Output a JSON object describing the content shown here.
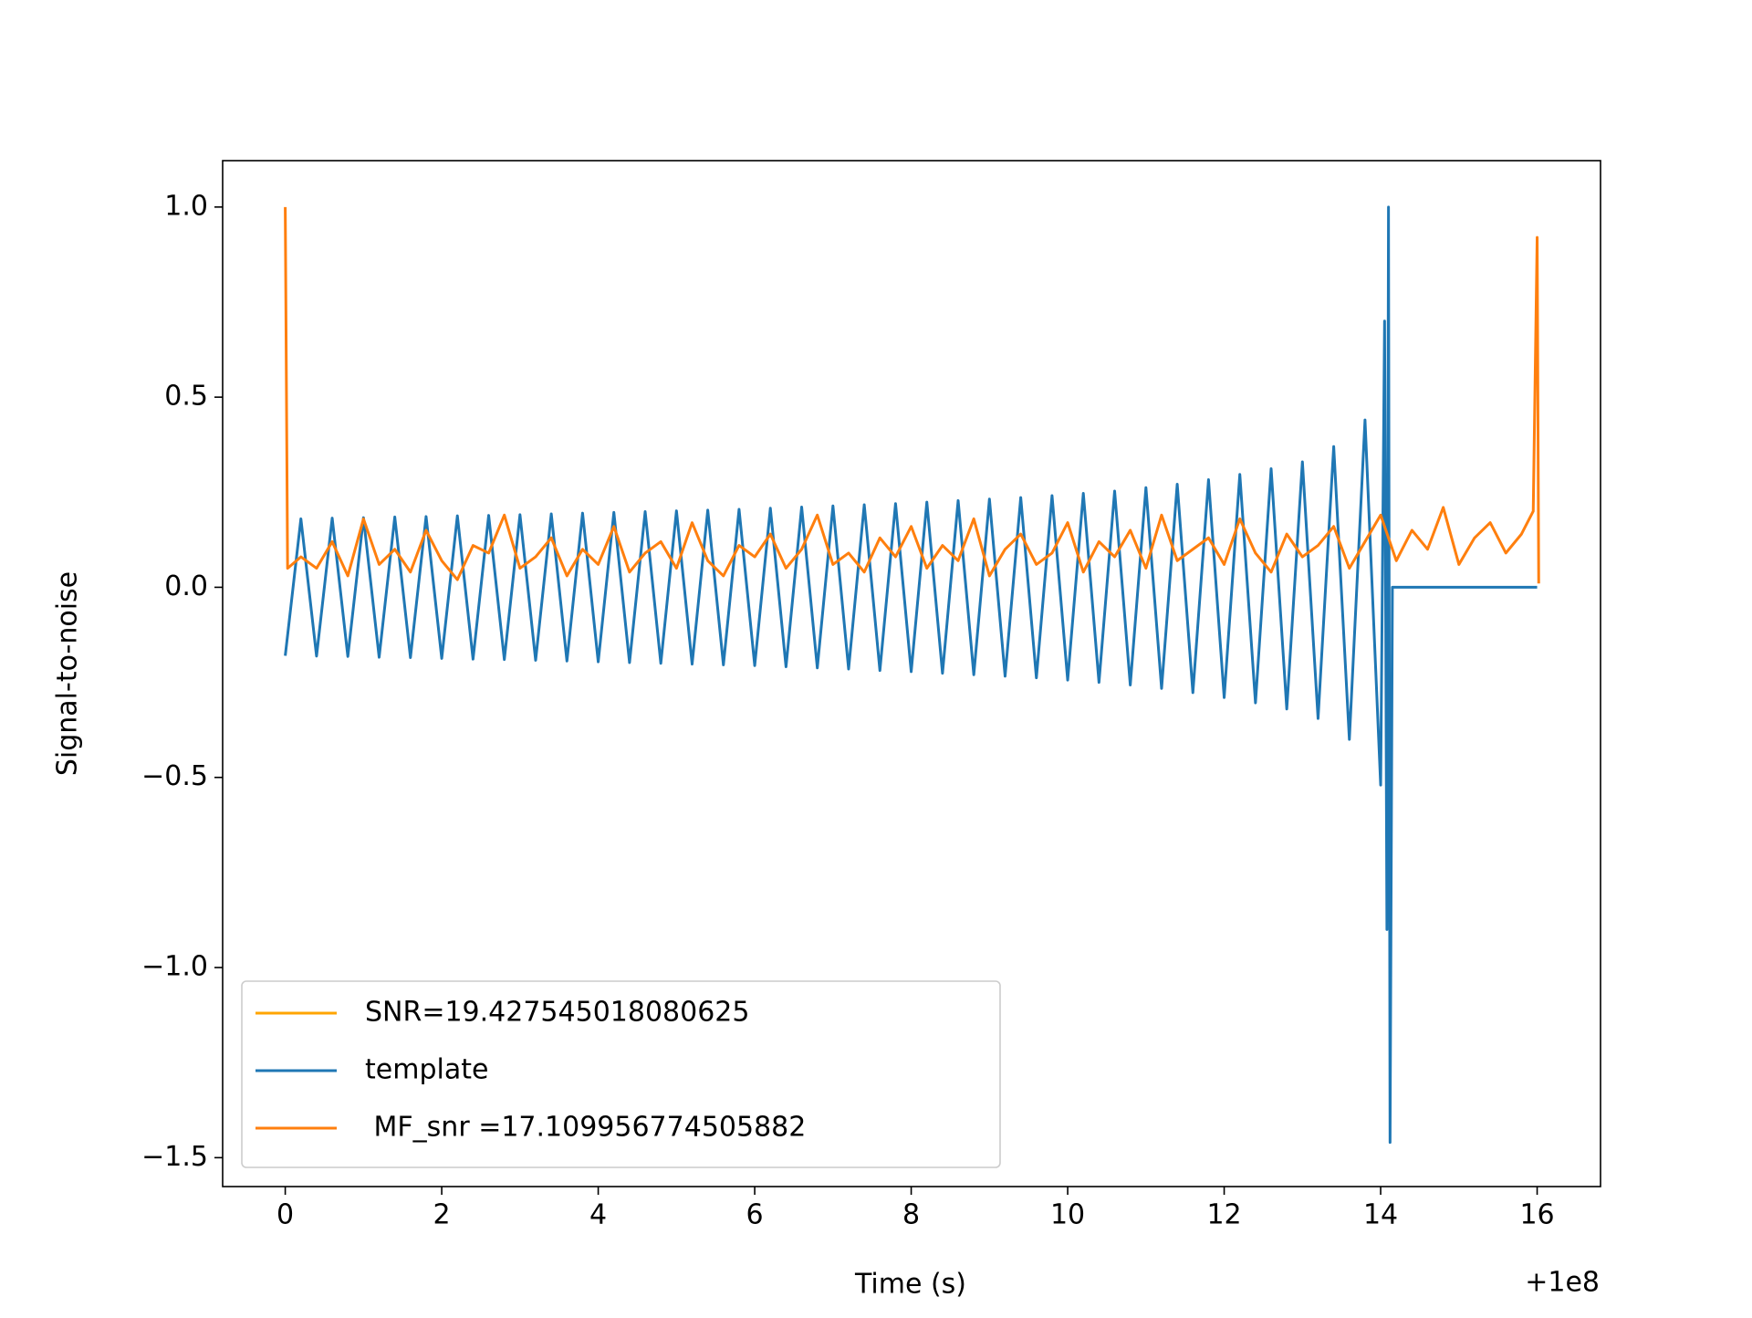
{
  "chart_data": {
    "type": "line",
    "xlabel": "Time (s)",
    "ylabel": "Signal-to-noise",
    "x_offset": "+1e8",
    "xlim": [
      -0.8,
      16.81
    ],
    "ylim": [
      -1.576,
      1.122
    ],
    "xticks": [
      0,
      2,
      4,
      6,
      8,
      10,
      12,
      14,
      16
    ],
    "yticks": [
      {
        "value": -1.5,
        "label": "−1.5"
      },
      {
        "value": -1.0,
        "label": "−1.0"
      },
      {
        "value": -0.5,
        "label": "−0.5"
      },
      {
        "value": 0.0,
        "label": "0.0"
      },
      {
        "value": 0.5,
        "label": "0.5"
      },
      {
        "value": 1.0,
        "label": "1.0"
      }
    ],
    "legend": "lower left",
    "series": [
      {
        "name": "SNR=19.427545018080625",
        "color": "#ffa500",
        "x": [],
        "values": []
      },
      {
        "name": "template",
        "color": "#1f77b4",
        "x": [
          0,
          0.2,
          0.4,
          0.6,
          0.8,
          1.0,
          1.2,
          1.4,
          1.6,
          1.8,
          2.0,
          2.2,
          2.4,
          2.6,
          2.8,
          3.0,
          3.2,
          3.4,
          3.6,
          3.8,
          4.0,
          4.2,
          4.4,
          4.6,
          4.8,
          5.0,
          5.2,
          5.4,
          5.6,
          5.8,
          6.0,
          6.2,
          6.4,
          6.6,
          6.8,
          7.0,
          7.2,
          7.4,
          7.6,
          7.8,
          8.0,
          8.2,
          8.4,
          8.6,
          8.8,
          9.0,
          9.2,
          9.4,
          9.6,
          9.8,
          10.0,
          10.2,
          10.4,
          10.6,
          10.8,
          11.0,
          11.2,
          11.4,
          11.6,
          11.8,
          12.0,
          12.2,
          12.4,
          12.6,
          12.8,
          13.0,
          13.2,
          13.4,
          13.6,
          13.8,
          14.0,
          14.05,
          14.08,
          14.1,
          14.12,
          14.15,
          16.0
        ],
        "values": [
          -0.18,
          0.18,
          -0.181,
          0.182,
          -0.182,
          0.183,
          -0.184,
          0.185,
          -0.185,
          0.186,
          -0.187,
          0.188,
          -0.189,
          0.189,
          -0.19,
          0.191,
          -0.192,
          0.193,
          -0.194,
          0.195,
          -0.196,
          0.197,
          -0.198,
          0.199,
          -0.2,
          0.201,
          -0.202,
          0.203,
          -0.204,
          0.205,
          -0.206,
          0.208,
          -0.209,
          0.211,
          -0.212,
          0.214,
          -0.215,
          0.217,
          -0.219,
          0.22,
          -0.222,
          0.224,
          -0.226,
          0.228,
          -0.23,
          0.232,
          -0.234,
          0.236,
          -0.238,
          0.241,
          -0.244,
          0.247,
          -0.25,
          0.253,
          -0.257,
          0.262,
          -0.266,
          0.271,
          -0.277,
          0.283,
          -0.29,
          0.297,
          -0.304,
          0.312,
          -0.32,
          0.33,
          -0.345,
          0.37,
          -0.4,
          0.44,
          -0.52,
          0.7,
          -0.9,
          1.0,
          -1.46,
          0,
          0
        ]
      },
      {
        "name": " MF_snr =17.109956774505882",
        "color": "#ff7f0e",
        "x": [
          0,
          0.03,
          0.2,
          0.4,
          0.6,
          0.8,
          1.0,
          1.2,
          1.4,
          1.6,
          1.8,
          2.0,
          2.2,
          2.4,
          2.6,
          2.8,
          3.0,
          3.2,
          3.4,
          3.6,
          3.8,
          4.0,
          4.2,
          4.4,
          4.6,
          4.8,
          5.0,
          5.2,
          5.4,
          5.6,
          5.8,
          6.0,
          6.2,
          6.4,
          6.6,
          6.8,
          7.0,
          7.2,
          7.4,
          7.6,
          7.8,
          8.0,
          8.2,
          8.4,
          8.6,
          8.8,
          9.0,
          9.2,
          9.4,
          9.6,
          9.8,
          10.0,
          10.2,
          10.4,
          10.6,
          10.8,
          11.0,
          11.2,
          11.4,
          11.6,
          11.8,
          12.0,
          12.2,
          12.4,
          12.6,
          12.8,
          13.0,
          13.2,
          13.4,
          13.6,
          13.8,
          14.0,
          14.2,
          14.4,
          14.6,
          14.8,
          15.0,
          15.2,
          15.4,
          15.6,
          15.8,
          15.95,
          16.0,
          16.02
        ],
        "values": [
          1.0,
          0.05,
          0.08,
          0.05,
          0.12,
          0.03,
          0.18,
          0.06,
          0.1,
          0.04,
          0.15,
          0.07,
          0.02,
          0.11,
          0.09,
          0.19,
          0.05,
          0.08,
          0.13,
          0.03,
          0.1,
          0.06,
          0.16,
          0.04,
          0.09,
          0.12,
          0.05,
          0.17,
          0.07,
          0.03,
          0.11,
          0.08,
          0.14,
          0.05,
          0.1,
          0.19,
          0.06,
          0.09,
          0.04,
          0.13,
          0.08,
          0.16,
          0.05,
          0.11,
          0.07,
          0.18,
          0.03,
          0.1,
          0.14,
          0.06,
          0.09,
          0.17,
          0.04,
          0.12,
          0.08,
          0.15,
          0.05,
          0.19,
          0.07,
          0.1,
          0.13,
          0.06,
          0.18,
          0.09,
          0.04,
          0.14,
          0.08,
          0.11,
          0.16,
          0.05,
          0.12,
          0.19,
          0.07,
          0.15,
          0.1,
          0.21,
          0.06,
          0.13,
          0.17,
          0.09,
          0.14,
          0.2,
          0.92,
          0.01
        ]
      }
    ]
  }
}
